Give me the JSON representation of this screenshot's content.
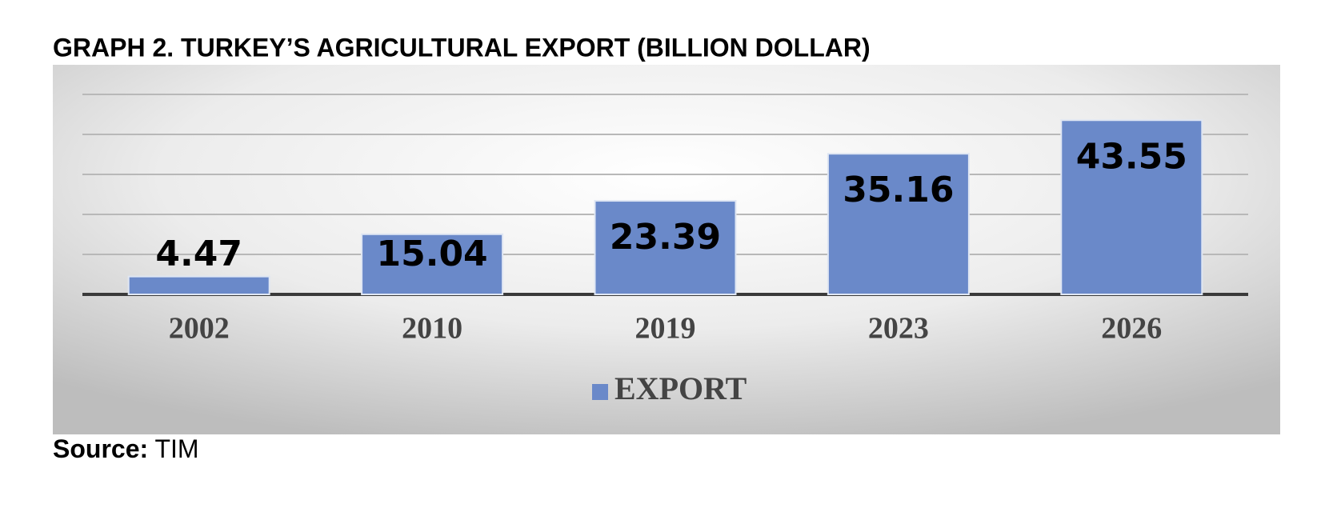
{
  "chart_data": {
    "type": "bar",
    "title": "GRAPH 2. TURKEY’S AGRICULTURAL EXPORT (BILLION DOLLAR)",
    "categories": [
      "2002",
      "2010",
      "2019",
      "2023",
      "2026"
    ],
    "series": [
      {
        "name": "EXPORT",
        "color": "#6a89c9",
        "values": [
          4.47,
          15.04,
          23.39,
          35.16,
          43.55
        ]
      }
    ],
    "ylim": [
      0,
      50
    ],
    "yticks": [
      0,
      10,
      20,
      30,
      40,
      50
    ],
    "grid": true,
    "source_label": "Source:",
    "source": "TIM"
  }
}
